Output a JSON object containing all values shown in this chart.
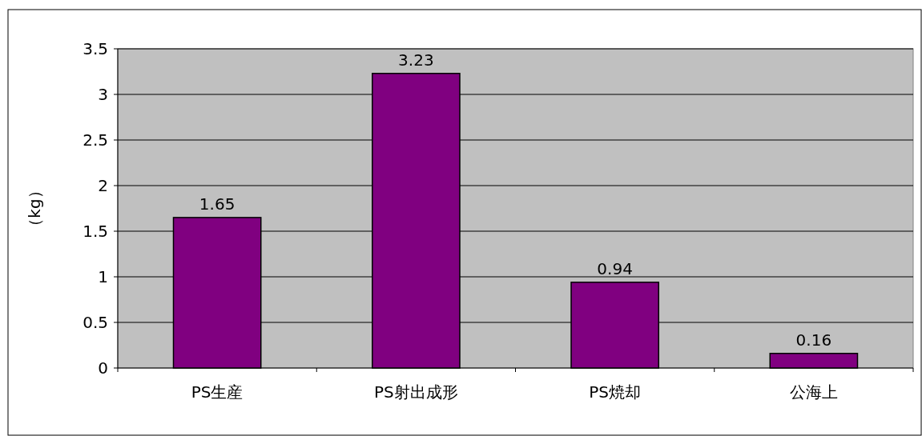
{
  "chart_data": {
    "type": "bar",
    "ylabel": "（kg）",
    "categories": [
      "PS生産",
      "PS射出成形",
      "PS焼却",
      "公海上"
    ],
    "values": [
      1.65,
      3.23,
      0.94,
      0.16
    ],
    "color": "#800080",
    "ylim": [
      0,
      3.5
    ],
    "yticks": [
      0,
      0.5,
      1,
      1.5,
      2,
      2.5,
      3,
      3.5
    ],
    "grid": "y",
    "data_labels": true
  }
}
